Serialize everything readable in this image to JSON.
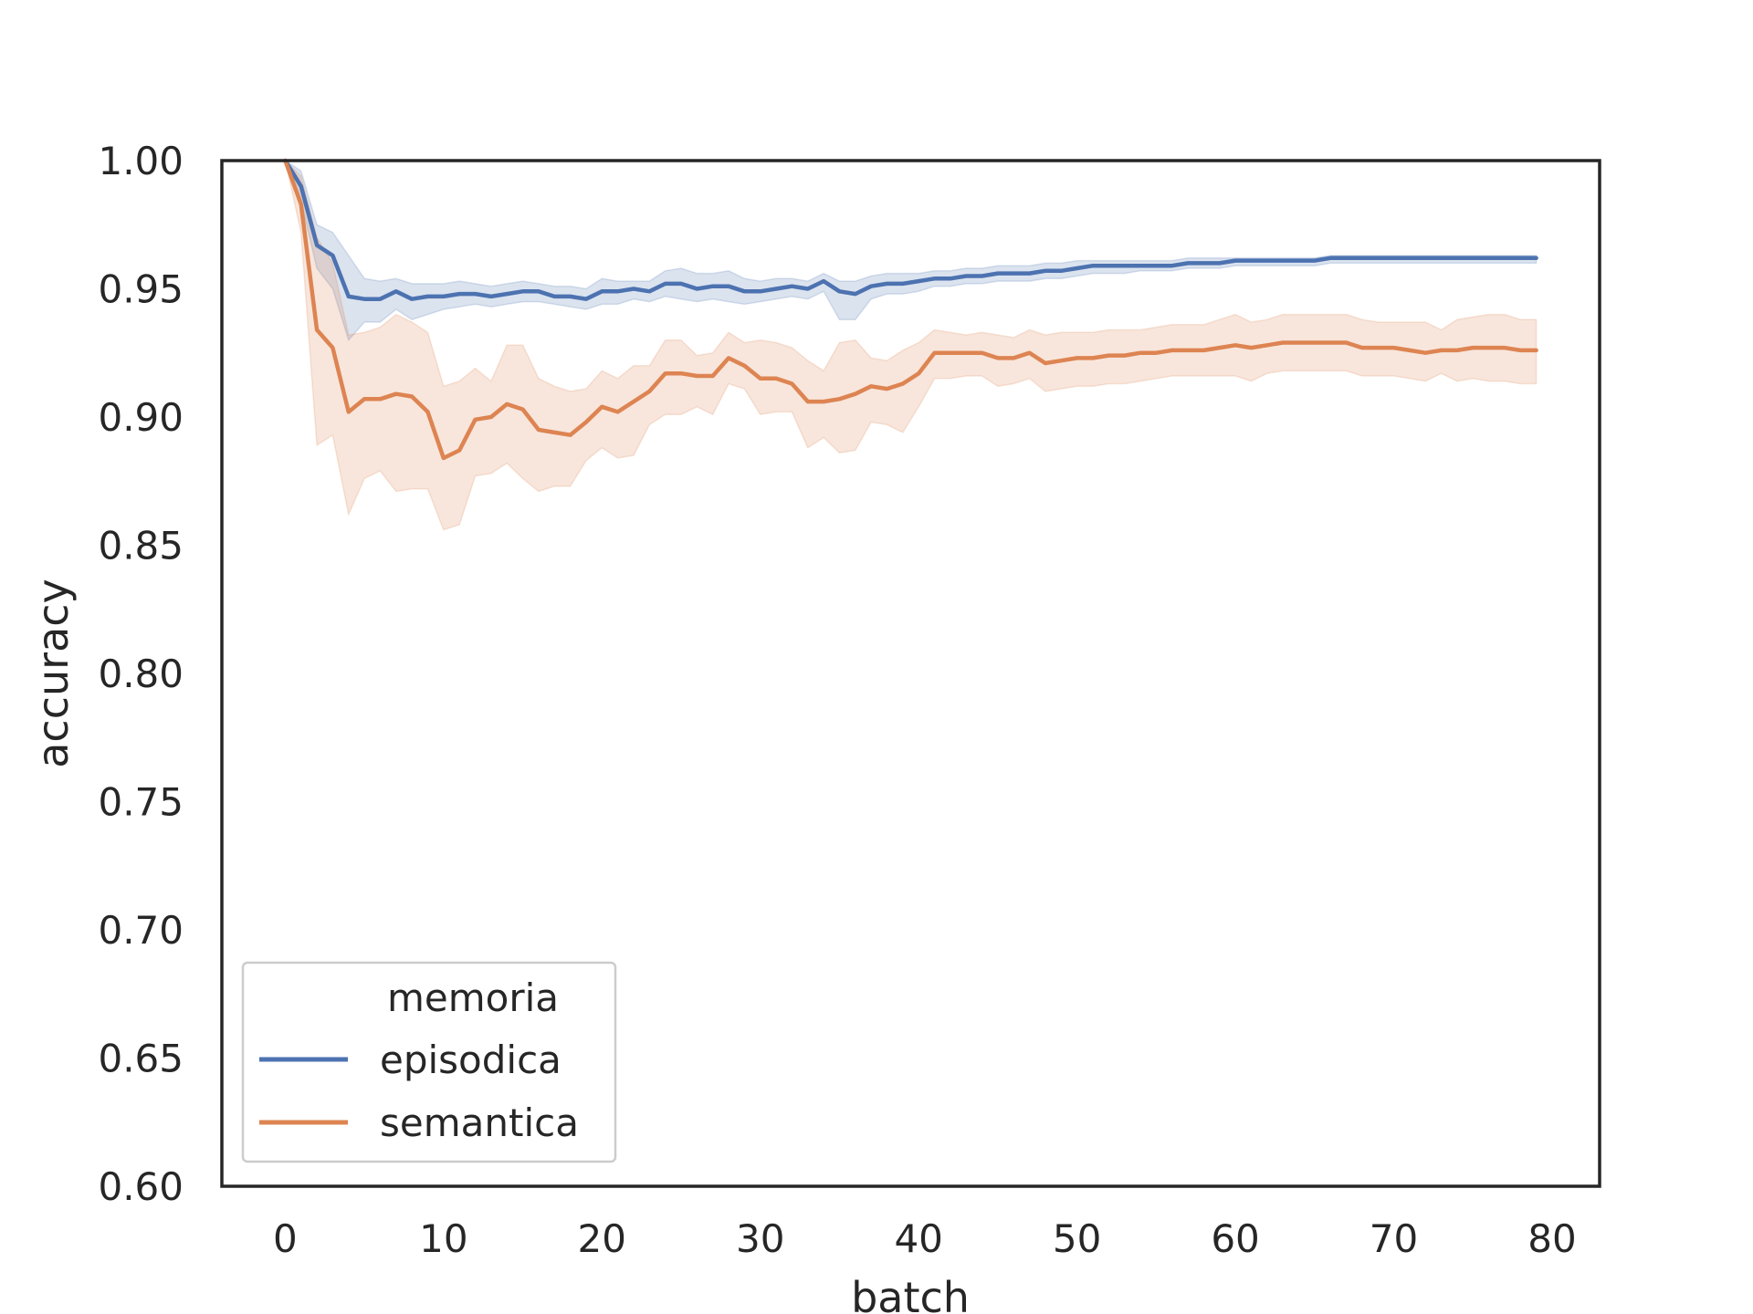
{
  "chart_data": {
    "type": "line",
    "xlabel": "batch",
    "ylabel": "accuracy",
    "xlim": [
      -4,
      83
    ],
    "ylim": [
      0.6,
      1.0
    ],
    "xticks": [
      0,
      10,
      20,
      30,
      40,
      50,
      60,
      70,
      80
    ],
    "yticks": [
      0.6,
      0.65,
      0.7,
      0.75,
      0.8,
      0.85,
      0.9,
      0.95,
      1.0
    ],
    "grid": false,
    "legend": {
      "title": "memoria",
      "placement": "lower-left",
      "entries": [
        "episodica",
        "semantica"
      ]
    },
    "series": [
      {
        "name": "episodica",
        "color": "#4c72b0",
        "x": [
          0,
          1,
          2,
          3,
          4,
          5,
          6,
          7,
          8,
          9,
          10,
          11,
          12,
          13,
          14,
          15,
          16,
          17,
          18,
          19,
          20,
          21,
          22,
          23,
          24,
          25,
          26,
          27,
          28,
          29,
          30,
          31,
          32,
          33,
          34,
          35,
          36,
          37,
          38,
          39,
          40,
          41,
          42,
          43,
          44,
          45,
          46,
          47,
          48,
          49,
          50,
          51,
          52,
          53,
          54,
          55,
          56,
          57,
          58,
          59,
          60,
          61,
          62,
          63,
          64,
          65,
          66,
          67,
          68,
          69,
          70,
          71,
          72,
          73,
          74,
          75,
          76,
          77,
          78,
          79
        ],
        "mean": [
          1.0,
          0.99,
          0.967,
          0.963,
          0.947,
          0.946,
          0.946,
          0.949,
          0.946,
          0.947,
          0.947,
          0.948,
          0.948,
          0.947,
          0.948,
          0.949,
          0.949,
          0.947,
          0.947,
          0.946,
          0.949,
          0.949,
          0.95,
          0.949,
          0.952,
          0.952,
          0.95,
          0.951,
          0.951,
          0.949,
          0.949,
          0.95,
          0.951,
          0.95,
          0.953,
          0.949,
          0.948,
          0.951,
          0.952,
          0.952,
          0.953,
          0.954,
          0.954,
          0.955,
          0.955,
          0.956,
          0.956,
          0.956,
          0.957,
          0.957,
          0.958,
          0.959,
          0.959,
          0.959,
          0.959,
          0.959,
          0.959,
          0.96,
          0.96,
          0.96,
          0.961,
          0.961,
          0.961,
          0.961,
          0.961,
          0.961,
          0.962,
          0.962,
          0.962,
          0.962,
          0.962,
          0.962,
          0.962,
          0.962,
          0.962,
          0.962,
          0.962,
          0.962,
          0.962,
          0.962
        ],
        "upper": [
          1.0,
          0.996,
          0.975,
          0.972,
          0.963,
          0.954,
          0.953,
          0.954,
          0.952,
          0.952,
          0.952,
          0.953,
          0.952,
          0.951,
          0.952,
          0.953,
          0.952,
          0.951,
          0.951,
          0.95,
          0.954,
          0.953,
          0.953,
          0.953,
          0.957,
          0.958,
          0.956,
          0.956,
          0.957,
          0.954,
          0.953,
          0.954,
          0.954,
          0.953,
          0.956,
          0.953,
          0.953,
          0.955,
          0.956,
          0.956,
          0.956,
          0.957,
          0.957,
          0.958,
          0.958,
          0.959,
          0.959,
          0.959,
          0.96,
          0.96,
          0.961,
          0.961,
          0.961,
          0.961,
          0.961,
          0.961,
          0.961,
          0.962,
          0.962,
          0.962,
          0.962,
          0.962,
          0.962,
          0.962,
          0.962,
          0.962,
          0.963,
          0.963,
          0.963,
          0.963,
          0.963,
          0.963,
          0.963,
          0.963,
          0.963,
          0.963,
          0.963,
          0.963,
          0.963,
          0.963
        ],
        "lower": [
          1.0,
          0.984,
          0.958,
          0.95,
          0.93,
          0.937,
          0.937,
          0.942,
          0.938,
          0.94,
          0.942,
          0.943,
          0.944,
          0.943,
          0.944,
          0.945,
          0.945,
          0.944,
          0.943,
          0.942,
          0.944,
          0.944,
          0.946,
          0.945,
          0.947,
          0.946,
          0.945,
          0.946,
          0.945,
          0.944,
          0.945,
          0.946,
          0.947,
          0.946,
          0.949,
          0.938,
          0.938,
          0.946,
          0.948,
          0.948,
          0.949,
          0.951,
          0.951,
          0.952,
          0.952,
          0.953,
          0.953,
          0.953,
          0.954,
          0.954,
          0.955,
          0.956,
          0.956,
          0.956,
          0.957,
          0.957,
          0.957,
          0.958,
          0.958,
          0.958,
          0.959,
          0.959,
          0.959,
          0.959,
          0.959,
          0.959,
          0.96,
          0.96,
          0.96,
          0.96,
          0.96,
          0.96,
          0.96,
          0.96,
          0.96,
          0.96,
          0.96,
          0.96,
          0.96,
          0.96
        ]
      },
      {
        "name": "semantica",
        "color": "#dd8452",
        "x": [
          0,
          1,
          2,
          3,
          4,
          5,
          6,
          7,
          8,
          9,
          10,
          11,
          12,
          13,
          14,
          15,
          16,
          17,
          18,
          19,
          20,
          21,
          22,
          23,
          24,
          25,
          26,
          27,
          28,
          29,
          30,
          31,
          32,
          33,
          34,
          35,
          36,
          37,
          38,
          39,
          40,
          41,
          42,
          43,
          44,
          45,
          46,
          47,
          48,
          49,
          50,
          51,
          52,
          53,
          54,
          55,
          56,
          57,
          58,
          59,
          60,
          61,
          62,
          63,
          64,
          65,
          66,
          67,
          68,
          69,
          70,
          71,
          72,
          73,
          74,
          75,
          76,
          77,
          78,
          79
        ],
        "mean": [
          1.0,
          0.983,
          0.934,
          0.927,
          0.902,
          0.907,
          0.907,
          0.909,
          0.908,
          0.902,
          0.884,
          0.887,
          0.899,
          0.9,
          0.905,
          0.903,
          0.895,
          0.894,
          0.893,
          0.898,
          0.904,
          0.902,
          0.906,
          0.91,
          0.917,
          0.917,
          0.916,
          0.916,
          0.923,
          0.92,
          0.915,
          0.915,
          0.913,
          0.906,
          0.906,
          0.907,
          0.909,
          0.912,
          0.911,
          0.913,
          0.917,
          0.925,
          0.925,
          0.925,
          0.925,
          0.923,
          0.923,
          0.925,
          0.921,
          0.922,
          0.923,
          0.923,
          0.924,
          0.924,
          0.925,
          0.925,
          0.926,
          0.926,
          0.926,
          0.927,
          0.928,
          0.927,
          0.928,
          0.929,
          0.929,
          0.929,
          0.929,
          0.929,
          0.927,
          0.927,
          0.927,
          0.926,
          0.925,
          0.926,
          0.926,
          0.927,
          0.927,
          0.927,
          0.926,
          0.926
        ],
        "upper": [
          1.0,
          0.994,
          0.97,
          0.96,
          0.932,
          0.933,
          0.935,
          0.94,
          0.937,
          0.933,
          0.912,
          0.914,
          0.919,
          0.914,
          0.928,
          0.928,
          0.915,
          0.912,
          0.91,
          0.911,
          0.918,
          0.915,
          0.92,
          0.92,
          0.93,
          0.93,
          0.924,
          0.925,
          0.933,
          0.929,
          0.93,
          0.929,
          0.927,
          0.922,
          0.918,
          0.929,
          0.93,
          0.923,
          0.922,
          0.926,
          0.929,
          0.934,
          0.933,
          0.932,
          0.933,
          0.932,
          0.931,
          0.934,
          0.932,
          0.933,
          0.933,
          0.933,
          0.934,
          0.934,
          0.934,
          0.935,
          0.936,
          0.936,
          0.936,
          0.938,
          0.94,
          0.937,
          0.938,
          0.94,
          0.94,
          0.94,
          0.94,
          0.94,
          0.938,
          0.937,
          0.937,
          0.937,
          0.937,
          0.934,
          0.938,
          0.939,
          0.94,
          0.94,
          0.938,
          0.938
        ],
        "lower": [
          1.0,
          0.972,
          0.889,
          0.893,
          0.862,
          0.876,
          0.879,
          0.871,
          0.872,
          0.872,
          0.856,
          0.858,
          0.877,
          0.878,
          0.882,
          0.876,
          0.871,
          0.873,
          0.873,
          0.883,
          0.888,
          0.884,
          0.885,
          0.897,
          0.901,
          0.901,
          0.904,
          0.901,
          0.913,
          0.911,
          0.901,
          0.902,
          0.902,
          0.888,
          0.892,
          0.886,
          0.887,
          0.898,
          0.897,
          0.894,
          0.904,
          0.915,
          0.915,
          0.916,
          0.916,
          0.912,
          0.913,
          0.915,
          0.91,
          0.911,
          0.912,
          0.912,
          0.913,
          0.913,
          0.914,
          0.915,
          0.916,
          0.916,
          0.916,
          0.916,
          0.916,
          0.914,
          0.917,
          0.918,
          0.918,
          0.918,
          0.918,
          0.918,
          0.916,
          0.916,
          0.916,
          0.915,
          0.914,
          0.917,
          0.914,
          0.915,
          0.914,
          0.914,
          0.913,
          0.913
        ]
      }
    ]
  }
}
